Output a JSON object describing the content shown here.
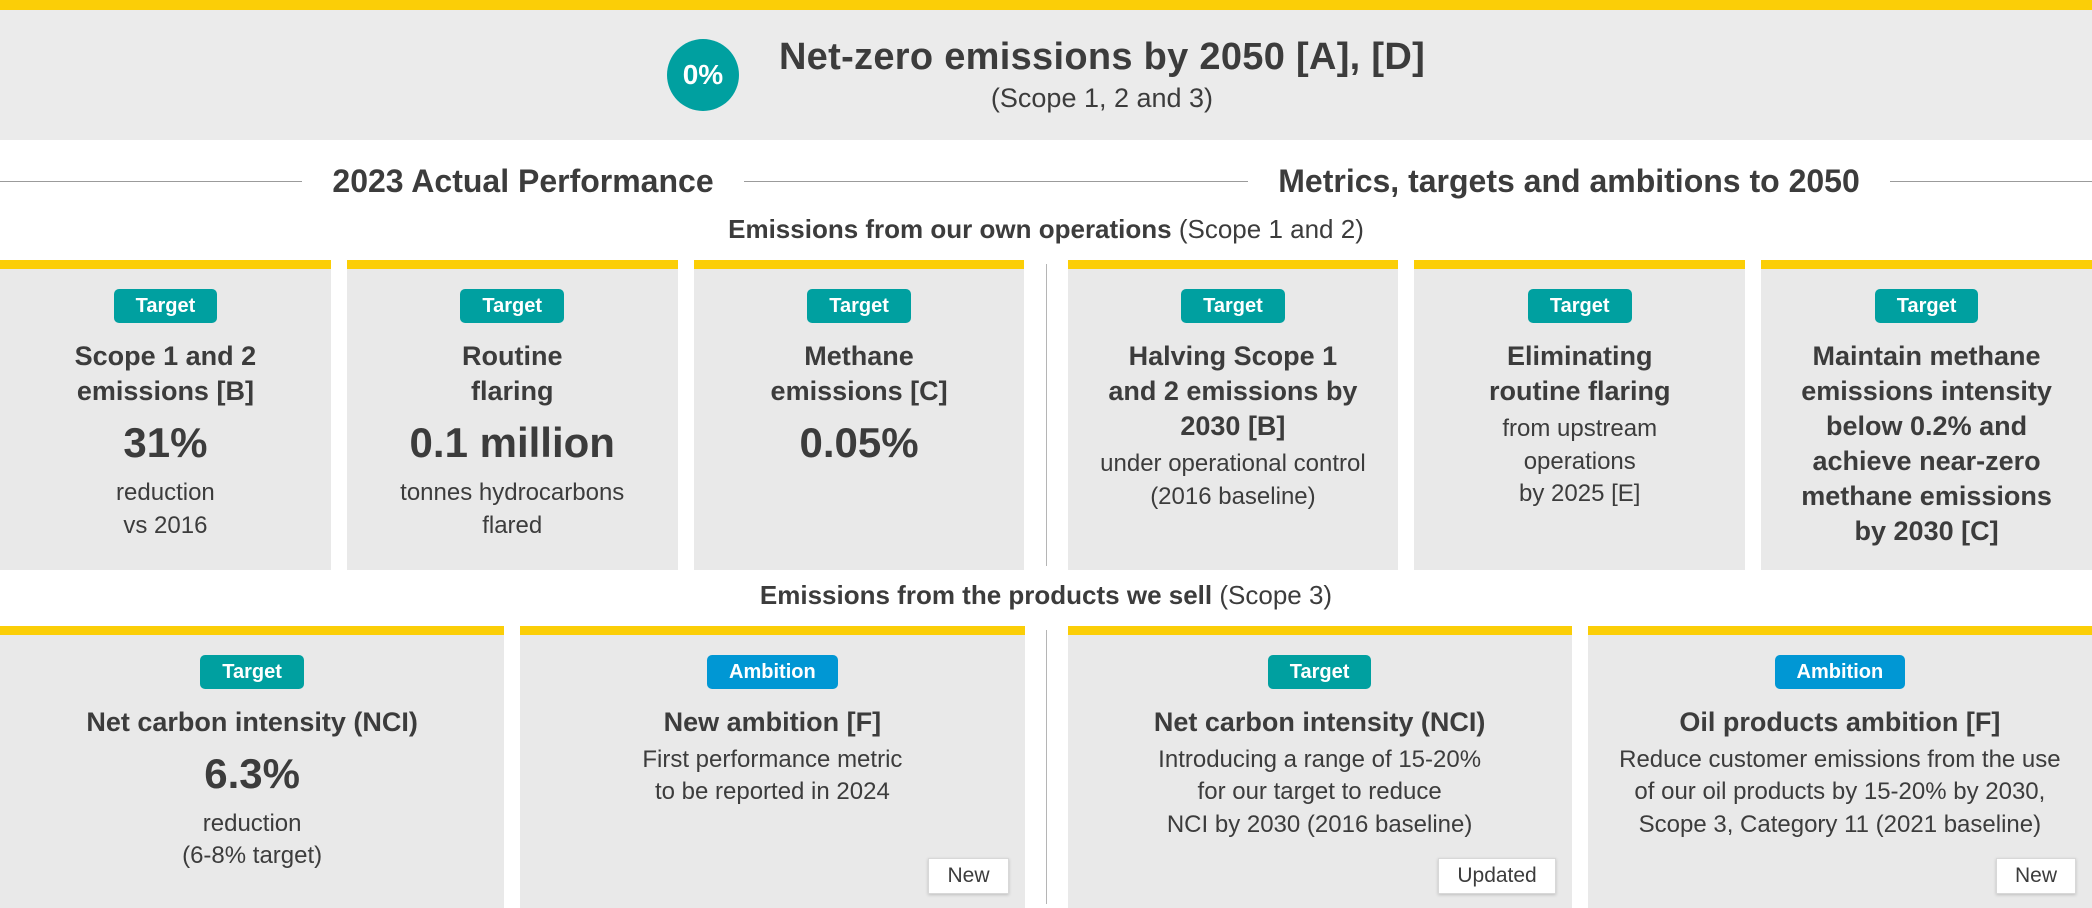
{
  "colors": {
    "brand_yellow": "#FBCE07",
    "teal": "#00A0A0",
    "blue": "#0097D4",
    "card_bg": "#E9E9E9",
    "band_bg": "#EBEBEB",
    "text": "#3C3C3C",
    "line": "#9B9B9B"
  },
  "header": {
    "circle_value": "0%",
    "title": "Net-zero emissions by 2050 [A], [D]",
    "subtitle": "(Scope 1, 2 and 3)"
  },
  "column_headers": {
    "left": "2023 Actual Performance",
    "right": "Metrics, targets and ambitions to 2050"
  },
  "section1": {
    "heading_bold": "Emissions from our own operations",
    "heading_rest": " (Scope 1 and 2)",
    "left_cards": [
      {
        "badge": "Target",
        "title": "Scope 1 and 2\nemissions [B]",
        "value": "31%",
        "desc": "reduction\nvs 2016"
      },
      {
        "badge": "Target",
        "title": "Routine\nflaring",
        "value": "0.1 million",
        "desc": "tonnes hydrocarbons\nflared"
      },
      {
        "badge": "Target",
        "title": "Methane\nemissions [C]",
        "value": "0.05%"
      }
    ],
    "right_cards": [
      {
        "badge": "Target",
        "title": "Halving Scope 1\nand 2 emissions by\n2030 [B]",
        "desc": "under operational control\n(2016 baseline)"
      },
      {
        "badge": "Target",
        "title": "Eliminating\nroutine flaring",
        "desc": "from upstream\noperations\nby 2025 [E]"
      },
      {
        "badge": "Target",
        "title": "Maintain methane\nemissions intensity\nbelow 0.2% and\nachieve near-zero\nmethane emissions\nby 2030 [C]"
      }
    ]
  },
  "section2": {
    "heading_bold": "Emissions from the products we sell",
    "heading_rest": " (Scope 3)",
    "left_cards": [
      {
        "badge": "Target",
        "title": "Net carbon intensity (NCI)",
        "value": "6.3%",
        "desc": "reduction\n(6-8% target)"
      },
      {
        "badge": "Ambition",
        "title": "New ambition [F]",
        "desc": "First performance metric\nto be reported in 2024",
        "tag": "New"
      }
    ],
    "right_cards": [
      {
        "badge": "Target",
        "title": "Net carbon intensity (NCI)",
        "desc": "Introducing a range of 15-20%\nfor our target to reduce\nNCI by 2030 (2016 baseline)",
        "tag": "Updated"
      },
      {
        "badge": "Ambition",
        "title": "Oil products ambition [F]",
        "desc": "Reduce customer emissions from the use\nof our oil products by 15-20% by 2030,\nScope 3, Category 11 (2021 baseline)",
        "tag": "New"
      }
    ]
  }
}
